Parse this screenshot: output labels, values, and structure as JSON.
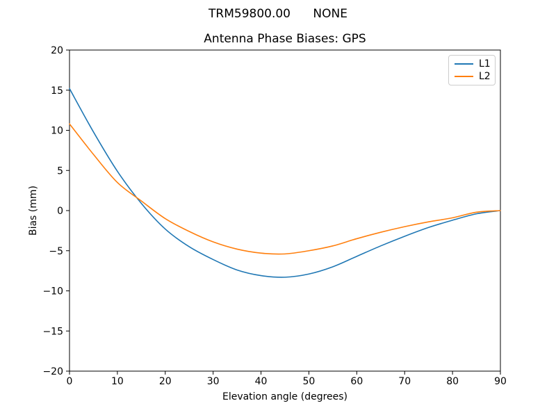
{
  "chart_data": {
    "type": "line",
    "suptitle": "TRM59800.00      NONE",
    "title": "Antenna Phase Biases: GPS",
    "xlabel": "Elevation angle (degrees)",
    "ylabel": "Bias (mm)",
    "xlim": [
      0,
      90
    ],
    "ylim": [
      -20,
      20
    ],
    "xticks": [
      0,
      10,
      20,
      30,
      40,
      50,
      60,
      70,
      80,
      90
    ],
    "yticks": [
      -20,
      -15,
      -10,
      -5,
      0,
      5,
      10,
      15,
      20
    ],
    "grid": false,
    "legend_position": "upper right",
    "x": [
      0,
      5,
      10,
      15,
      20,
      25,
      30,
      35,
      40,
      45,
      50,
      55,
      60,
      65,
      70,
      75,
      80,
      85,
      90
    ],
    "series": [
      {
        "name": "L1",
        "color": "#1f77b4",
        "values": [
          15.2,
          9.8,
          4.9,
          0.9,
          -2.3,
          -4.5,
          -6.1,
          -7.4,
          -8.1,
          -8.3,
          -7.9,
          -7.0,
          -5.7,
          -4.4,
          -3.2,
          -2.1,
          -1.2,
          -0.4,
          0.0
        ]
      },
      {
        "name": "L2",
        "color": "#ff7f0e",
        "values": [
          10.8,
          7.0,
          3.5,
          1.2,
          -1.0,
          -2.6,
          -3.9,
          -4.8,
          -5.3,
          -5.4,
          -5.0,
          -4.4,
          -3.5,
          -2.7,
          -2.0,
          -1.4,
          -0.9,
          -0.2,
          0.0
        ]
      }
    ],
    "axis_color": "#000000",
    "background_color": "#ffffff"
  }
}
